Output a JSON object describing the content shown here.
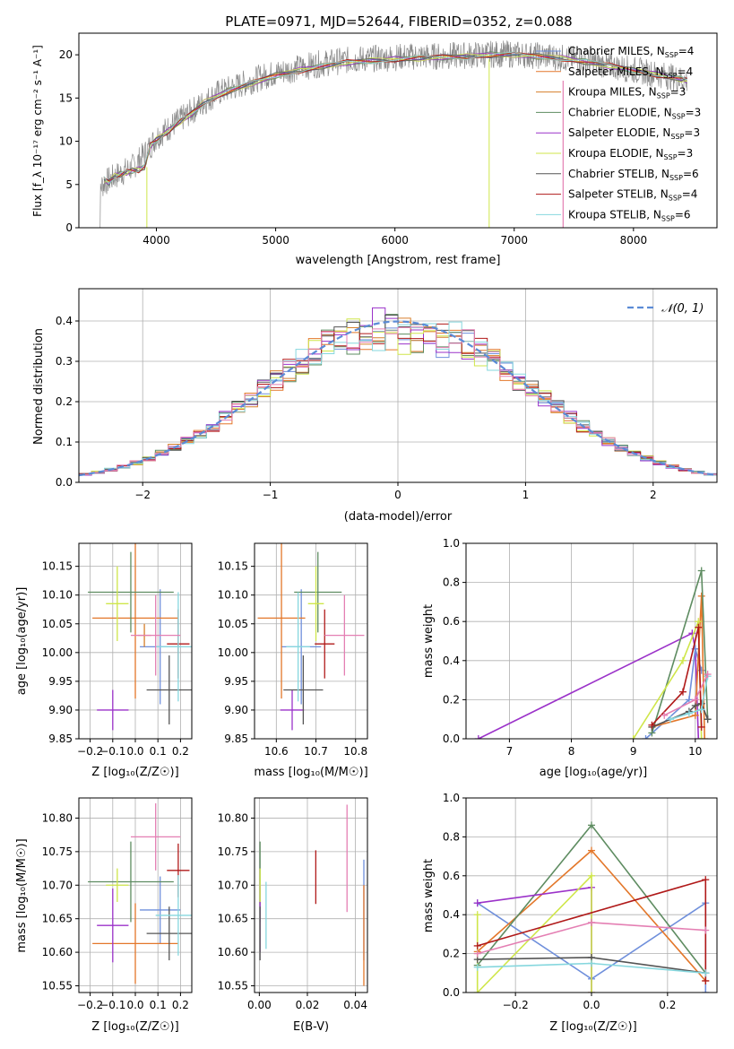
{
  "figure": {
    "title": "PLATE=0971, MJD=52644, FIBERID=0352, z=0.088",
    "colors": [
      "#6f8fdb",
      "#e3772a",
      "#d67f2c",
      "#5e8c61",
      "#9b32c9",
      "#cfe64a",
      "#555555",
      "#b01919",
      "#86d7de",
      "#e47fb3",
      "#8a8a8a"
    ]
  },
  "chart_data": [
    {
      "id": "spectrum",
      "type": "line",
      "xlabel": "wavelength [Angstrom, rest frame]",
      "ylabel": "Flux [f_λ 10⁻¹⁷ erg cm⁻² s⁻¹ A⁻¹]",
      "xlim": [
        3350,
        8700
      ],
      "ylim": [
        0,
        22.5
      ],
      "xticks": [
        4000,
        5000,
        6000,
        7000,
        8000
      ],
      "yticks": [
        0,
        5,
        10,
        15,
        20
      ],
      "grid": false,
      "legend_position": "right",
      "legend": [
        {
          "label": "Chabrier MILES, N",
          "sub": "SSP",
          "suffix": "=4",
          "color": "#6f8fdb"
        },
        {
          "label": "Salpeter MILES, N",
          "sub": "SSP",
          "suffix": "=4",
          "color": "#e3772a"
        },
        {
          "label": "Kroupa MILES, N",
          "sub": "SSP",
          "suffix": "=3",
          "color": "#d67f2c"
        },
        {
          "label": "Chabrier ELODIE, N",
          "sub": "SSP",
          "suffix": "=3",
          "color": "#5e8c61"
        },
        {
          "label": "Salpeter ELODIE, N",
          "sub": "SSP",
          "suffix": "=3",
          "color": "#9b32c9"
        },
        {
          "label": "Kroupa ELODIE, N",
          "sub": "SSP",
          "suffix": "=3",
          "color": "#cfe64a"
        },
        {
          "label": "Chabrier STELIB, N",
          "sub": "SSP",
          "suffix": "=6",
          "color": "#555555"
        },
        {
          "label": "Salpeter STELIB, N",
          "sub": "SSP",
          "suffix": "=4",
          "color": "#b01919"
        },
        {
          "label": "Kroupa STELIB, N",
          "sub": "SSP",
          "suffix": "=6",
          "color": "#86d7de"
        }
      ],
      "continuum_x": [
        3500,
        3600,
        3700,
        3800,
        3900,
        4000,
        4100,
        4200,
        4300,
        4500,
        4700,
        4900,
        5100,
        5300,
        5500,
        5700,
        5900,
        6100,
        6300,
        6500,
        6700,
        6900,
        7100,
        7300,
        7500,
        7700,
        7900,
        8100,
        8300,
        8450
      ],
      "continuum_y": [
        4.5,
        5.5,
        6.3,
        7.0,
        8.5,
        10.5,
        11.5,
        12.5,
        13.5,
        15.5,
        16.5,
        17.5,
        18.2,
        18.8,
        19.2,
        19.5,
        19.6,
        19.8,
        19.8,
        19.9,
        20.0,
        20.1,
        20.0,
        19.8,
        19.5,
        19.0,
        18.5,
        18.0,
        17.5,
        17.0
      ],
      "model_x": [
        3560,
        3600,
        3650,
        3700,
        3750,
        3800,
        3850,
        3900,
        3950,
        4000,
        4100,
        4200,
        4300,
        4400,
        4600,
        4800,
        5000,
        5200,
        5400,
        5600,
        5800,
        6000,
        6200,
        6400,
        6600,
        6800,
        7000,
        7200,
        7400,
        7600,
        7800,
        8000,
        8200,
        8400,
        8450
      ],
      "model_y": [
        5.6,
        5.2,
        6.0,
        6.2,
        6.4,
        6.6,
        6.7,
        7.0,
        9.5,
        10.2,
        11.2,
        12.3,
        13.2,
        14.5,
        15.8,
        16.7,
        17.6,
        18.2,
        18.7,
        19.1,
        19.3,
        19.5,
        19.6,
        19.7,
        19.8,
        20.0,
        20.0,
        19.8,
        19.6,
        19.2,
        18.7,
        18.2,
        17.7,
        17.2,
        17.0
      ]
    },
    {
      "id": "residuals",
      "type": "histogram",
      "xlabel": "(data-model)/error",
      "ylabel": "Normed distribution",
      "xlim": [
        -2.5,
        2.5
      ],
      "ylim": [
        0,
        0.48
      ],
      "xticks": [
        -2,
        -1,
        0,
        1,
        2
      ],
      "yticks": [
        0.0,
        0.1,
        0.2,
        0.3,
        0.4
      ],
      "grid": true,
      "legend_position": "top-right",
      "reference_curve": {
        "label": "𝒩(0, 1)",
        "color": "#5b8bd6"
      },
      "bins": {
        "start": -2.5,
        "width": 0.1
      }
    },
    {
      "id": "age-vs-Z",
      "type": "errorbar",
      "xlabel": "Z [log₁₀(Z/Z☉)]",
      "ylabel": "age  [log₁₀(age/yr)]",
      "xlim": [
        -0.25,
        0.25
      ],
      "ylim": [
        9.85,
        10.19
      ],
      "xticks": [
        -0.2,
        -0.1,
        0.0,
        0.1,
        0.2
      ],
      "yticks": [
        9.85,
        9.9,
        9.95,
        10.0,
        10.05,
        10.1,
        10.15
      ],
      "grid": true,
      "points": [
        {
          "x": 0.11,
          "xerr": 0.09,
          "y": 10.01,
          "yerr": 0.1,
          "color": "#6f8fdb"
        },
        {
          "x": 0.0,
          "xerr": 0.19,
          "y": 10.06,
          "yerr": 0.14,
          "color": "#e3772a"
        },
        {
          "x": 0.04,
          "xerr": 0.03,
          "y": 10.03,
          "yerr": 0.02,
          "color": "#d67f2c"
        },
        {
          "x": -0.02,
          "xerr": 0.19,
          "y": 10.105,
          "yerr": 0.07,
          "color": "#5e8c61"
        },
        {
          "x": -0.1,
          "xerr": 0.07,
          "y": 9.9,
          "yerr": 0.035,
          "color": "#9b32c9"
        },
        {
          "x": -0.08,
          "xerr": 0.05,
          "y": 10.085,
          "yerr": 0.065,
          "color": "#cfe64a"
        },
        {
          "x": 0.15,
          "xerr": 0.1,
          "y": 9.935,
          "yerr": 0.06,
          "color": "#555555"
        },
        {
          "x": 0.19,
          "xerr": 0.05,
          "y": 10.015,
          "yerr": 0.06,
          "color": "#b01919"
        },
        {
          "x": 0.19,
          "xerr": 0.1,
          "y": 10.01,
          "yerr": 0.095,
          "color": "#86d7de"
        },
        {
          "x": 0.09,
          "xerr": 0.11,
          "y": 10.03,
          "yerr": 0.07,
          "color": "#e47fb3"
        }
      ]
    },
    {
      "id": "age-vs-mass",
      "type": "errorbar",
      "xlabel": "mass [log₁₀(M/M☉)]",
      "ylabel": "",
      "xlim": [
        10.545,
        10.83
      ],
      "ylim": [
        9.85,
        10.19
      ],
      "xticks": [
        10.6,
        10.7,
        10.8
      ],
      "yticks": [
        9.85,
        9.9,
        9.95,
        10.0,
        10.05,
        10.1,
        10.15
      ],
      "grid": true,
      "points": [
        {
          "x": 10.663,
          "xerr": 0.05,
          "y": 10.01,
          "yerr": 0.1,
          "color": "#6f8fdb"
        },
        {
          "x": 10.613,
          "xerr": 0.06,
          "y": 10.06,
          "yerr": 0.14,
          "color": "#e3772a"
        },
        {
          "x": 10.705,
          "xerr": 0.06,
          "y": 10.105,
          "yerr": 0.07,
          "color": "#5e8c61"
        },
        {
          "x": 10.64,
          "xerr": 0.03,
          "y": 9.9,
          "yerr": 0.035,
          "color": "#9b32c9"
        },
        {
          "x": 10.7,
          "xerr": 0.02,
          "y": 10.085,
          "yerr": 0.065,
          "color": "#cfe64a"
        },
        {
          "x": 10.668,
          "xerr": 0.05,
          "y": 9.935,
          "yerr": 0.06,
          "color": "#555555"
        },
        {
          "x": 10.722,
          "xerr": 0.025,
          "y": 10.015,
          "yerr": 0.06,
          "color": "#b01919"
        },
        {
          "x": 10.655,
          "xerr": 0.03,
          "y": 10.01,
          "yerr": 0.095,
          "color": "#86d7de"
        },
        {
          "x": 10.772,
          "xerr": 0.05,
          "y": 10.03,
          "yerr": 0.07,
          "color": "#e47fb3"
        }
      ]
    },
    {
      "id": "mass-weight-vs-age",
      "type": "line",
      "xlabel": "age  [log₁₀(age/yr)]",
      "ylabel": "mass weight",
      "xlim": [
        6.3,
        10.35
      ],
      "ylim": [
        0,
        1.0
      ],
      "xticks": [
        7,
        8,
        9,
        10
      ],
      "yticks": [
        0.0,
        0.2,
        0.4,
        0.6,
        0.8,
        1.0
      ],
      "grid": true,
      "series": [
        {
          "color": "#9b32c9",
          "x": [
            6.5,
            9.95,
            10.0,
            10.05
          ],
          "y": [
            0.0,
            0.54,
            0.46,
            0.0
          ]
        },
        {
          "color": "#6f8fdb",
          "x": [
            9.2,
            9.9,
            10.0,
            10.1
          ],
          "y": [
            0.0,
            0.2,
            0.46,
            0.35
          ]
        },
        {
          "color": "#e3772a",
          "x": [
            9.3,
            10.0,
            10.1,
            10.15
          ],
          "y": [
            0.06,
            0.12,
            0.73,
            0.0
          ]
        },
        {
          "color": "#5e8c61",
          "x": [
            9.3,
            10.1,
            10.2
          ],
          "y": [
            0.03,
            0.86,
            0.1
          ]
        },
        {
          "color": "#cfe64a",
          "x": [
            9.0,
            9.8,
            10.05,
            10.1
          ],
          "y": [
            0.0,
            0.4,
            0.6,
            0.0
          ]
        },
        {
          "color": "#555555",
          "x": [
            9.3,
            9.9,
            10.0,
            10.1,
            10.2
          ],
          "y": [
            0.06,
            0.14,
            0.17,
            0.18,
            0.1
          ]
        },
        {
          "color": "#b01919",
          "x": [
            9.3,
            9.8,
            10.05,
            10.1
          ],
          "y": [
            0.07,
            0.24,
            0.57,
            0.06
          ]
        },
        {
          "color": "#86d7de",
          "x": [
            9.6,
            9.9,
            10.1,
            10.2
          ],
          "y": [
            0.1,
            0.13,
            0.15,
            0.32
          ]
        },
        {
          "color": "#e47fb3",
          "x": [
            9.5,
            10.0,
            10.2
          ],
          "y": [
            0.12,
            0.2,
            0.33
          ]
        }
      ]
    },
    {
      "id": "mass-vs-Z",
      "type": "errorbar",
      "xlabel": "Z [log₁₀(Z/Z☉)]",
      "ylabel": "mass [log₁₀(M/M☉)]",
      "xlim": [
        -0.25,
        0.25
      ],
      "ylim": [
        10.54,
        10.83
      ],
      "xticks": [
        -0.2,
        -0.1,
        0.0,
        0.1,
        0.2
      ],
      "yticks": [
        10.55,
        10.6,
        10.65,
        10.7,
        10.75,
        10.8
      ],
      "grid": true,
      "points": [
        {
          "x": 0.11,
          "xerr": 0.09,
          "y": 10.663,
          "yerr": 0.05,
          "color": "#6f8fdb"
        },
        {
          "x": 0.0,
          "xerr": 0.19,
          "y": 10.613,
          "yerr": 0.06,
          "color": "#e3772a"
        },
        {
          "x": -0.02,
          "xerr": 0.19,
          "y": 10.705,
          "yerr": 0.06,
          "color": "#5e8c61"
        },
        {
          "x": -0.1,
          "xerr": 0.07,
          "y": 10.64,
          "yerr": 0.055,
          "color": "#9b32c9"
        },
        {
          "x": -0.08,
          "xerr": 0.05,
          "y": 10.7,
          "yerr": 0.025,
          "color": "#cfe64a"
        },
        {
          "x": 0.15,
          "xerr": 0.1,
          "y": 10.628,
          "yerr": 0.04,
          "color": "#555555"
        },
        {
          "x": 0.19,
          "xerr": 0.05,
          "y": 10.722,
          "yerr": 0.04,
          "color": "#b01919"
        },
        {
          "x": 0.19,
          "xerr": 0.1,
          "y": 10.655,
          "yerr": 0.06,
          "color": "#86d7de"
        },
        {
          "x": 0.09,
          "xerr": 0.11,
          "y": 10.772,
          "yerr": 0.05,
          "color": "#e47fb3"
        }
      ]
    },
    {
      "id": "mass-vs-ebv",
      "type": "errorbar",
      "xlabel": "E(B-V)",
      "ylabel": "",
      "xlim": [
        -0.002,
        0.045
      ],
      "ylim": [
        10.54,
        10.83
      ],
      "xticks": [
        0.0,
        0.02,
        0.04
      ],
      "yticks": [
        10.55,
        10.6,
        10.65,
        10.7,
        10.75,
        10.8
      ],
      "grid": true,
      "points": [
        {
          "x": 0.0435,
          "xerr": 0,
          "y": 10.663,
          "yerr": 0.075,
          "color": "#6f8fdb"
        },
        {
          "x": 0.0435,
          "xerr": 0,
          "y": 10.625,
          "yerr": 0.075,
          "color": "#e3772a"
        },
        {
          "x": 0.0003,
          "xerr": 0,
          "y": 10.705,
          "yerr": 0.06,
          "color": "#5e8c61"
        },
        {
          "x": 0.0003,
          "xerr": 0,
          "y": 10.65,
          "yerr": 0.05,
          "color": "#9b32c9"
        },
        {
          "x": 0.0003,
          "xerr": 0,
          "y": 10.7,
          "yerr": 0.025,
          "color": "#cfe64a"
        },
        {
          "x": 0.0003,
          "xerr": 0,
          "y": 10.628,
          "yerr": 0.04,
          "color": "#555555"
        },
        {
          "x": 0.0235,
          "xerr": 0,
          "y": 10.712,
          "yerr": 0.04,
          "color": "#b01919"
        },
        {
          "x": 0.0028,
          "xerr": 0,
          "y": 10.655,
          "yerr": 0.05,
          "color": "#86d7de"
        },
        {
          "x": 0.0365,
          "xerr": 0,
          "y": 10.74,
          "yerr": 0.08,
          "color": "#e47fb3"
        }
      ]
    },
    {
      "id": "mass-weight-vs-Z",
      "type": "line",
      "xlabel": "Z [log₁₀(Z/Z☉)]",
      "ylabel": "mass weight",
      "xlim": [
        -0.33,
        0.33
      ],
      "ylim": [
        0,
        1.0
      ],
      "xticks": [
        -0.2,
        0.0,
        0.2
      ],
      "yticks": [
        0.0,
        0.2,
        0.4,
        0.6,
        0.8,
        1.0
      ],
      "grid": true,
      "series": [
        {
          "color": "#6f8fdb",
          "x": [
            -0.3,
            0.0,
            0.3,
            0.3
          ],
          "y": [
            0.46,
            0.07,
            0.46,
            0.0
          ]
        },
        {
          "color": "#e3772a",
          "x": [
            -0.3,
            0.0,
            0.3
          ],
          "y": [
            0.21,
            0.73,
            0.06
          ]
        },
        {
          "color": "#5e8c61",
          "x": [
            -0.3,
            0.0,
            0.3
          ],
          "y": [
            0.14,
            0.86,
            0.1
          ]
        },
        {
          "color": "#9b32c9",
          "x": [
            -0.3,
            0.0,
            0.0
          ],
          "y": [
            0.46,
            0.54,
            0.0
          ]
        },
        {
          "color": "#cfe64a",
          "x": [
            -0.3,
            -0.3,
            0.0,
            0.0
          ],
          "y": [
            0.4,
            0.0,
            0.6,
            0.0
          ]
        },
        {
          "color": "#555555",
          "x": [
            -0.3,
            0.0,
            0.3
          ],
          "y": [
            0.17,
            0.18,
            0.1
          ]
        },
        {
          "color": "#b01919",
          "x": [
            -0.3,
            0.3,
            0.3
          ],
          "y": [
            0.24,
            0.58,
            0.06
          ]
        },
        {
          "color": "#86d7de",
          "x": [
            -0.3,
            0.0,
            0.3
          ],
          "y": [
            0.13,
            0.15,
            0.1
          ]
        },
        {
          "color": "#e47fb3",
          "x": [
            -0.3,
            0.0,
            0.3
          ],
          "y": [
            0.2,
            0.36,
            0.32
          ]
        }
      ]
    }
  ]
}
